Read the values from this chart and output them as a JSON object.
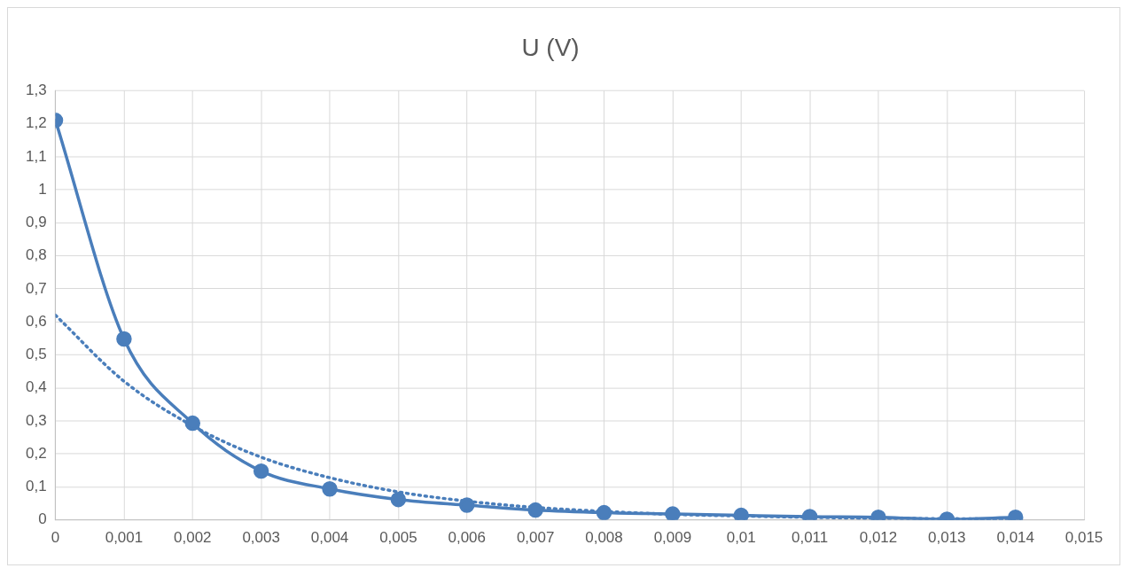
{
  "chart_data": {
    "type": "line",
    "title": "U (V)",
    "grid": true,
    "legend": false,
    "xlim": [
      0,
      0.015
    ],
    "xticks": [
      0,
      {
        "value": 0.001,
        "label": "0,001"
      },
      {
        "value": 0.002,
        "label": "0,002"
      },
      {
        "value": 0.003,
        "label": "0,003"
      },
      {
        "value": 0.004,
        "label": "0,004"
      },
      {
        "value": 0.005,
        "label": "0,005"
      },
      {
        "value": 0.006,
        "label": "0,006"
      },
      {
        "value": 0.007,
        "label": "0,007"
      },
      {
        "value": 0.008,
        "label": "0,008"
      },
      {
        "value": 0.009,
        "label": "0,009"
      },
      {
        "value": 0.01,
        "label": "0,01"
      },
      {
        "value": 0.011,
        "label": "0,011"
      },
      {
        "value": 0.012,
        "label": "0,012"
      },
      {
        "value": 0.013,
        "label": "0,013"
      },
      {
        "value": 0.014,
        "label": "0,014"
      },
      {
        "value": 0.015,
        "label": "0,015"
      }
    ],
    "ylim": [
      0,
      1.3
    ],
    "yticks": [
      0,
      {
        "value": 0.1,
        "label": "0,1"
      },
      {
        "value": 0.2,
        "label": "0,2"
      },
      {
        "value": 0.3,
        "label": "0,3"
      },
      {
        "value": 0.4,
        "label": "0,4"
      },
      {
        "value": 0.5,
        "label": "0,5"
      },
      {
        "value": 0.6,
        "label": "0,6"
      },
      {
        "value": 0.7,
        "label": "0,7"
      },
      {
        "value": 0.8,
        "label": "0,8"
      },
      {
        "value": 0.9,
        "label": "0,9"
      },
      1,
      {
        "value": 1.1,
        "label": "1,1"
      },
      {
        "value": 1.2,
        "label": "1,2"
      },
      {
        "value": 1.3,
        "label": "1,3"
      }
    ],
    "series": [
      {
        "color": "#4a7ebb",
        "marker": "circle",
        "line_style": "solid",
        "x": [
          0,
          0.001,
          0.002,
          0.003,
          0.004,
          0.005,
          0.006,
          0.007,
          0.008,
          0.009,
          0.01,
          0.011,
          0.012,
          0.013,
          0.014
        ],
        "values": [
          1.21,
          0.548,
          0.293,
          0.148,
          0.094,
          0.062,
          0.045,
          0.03,
          0.022,
          0.018,
          0.014,
          0.01,
          0.008,
          0.002,
          0.008
        ]
      },
      {
        "color": "#4a7ebb",
        "marker": "none",
        "line_style": "dotted",
        "x": [
          0,
          0.001,
          0.002,
          0.003,
          0.004,
          0.005,
          0.006,
          0.007,
          0.008,
          0.009,
          0.01,
          0.011,
          0.012,
          0.013,
          0.014
        ],
        "values": [
          0.62,
          0.42,
          0.285,
          0.19,
          0.128,
          0.085,
          0.057,
          0.038,
          0.026,
          0.017,
          0.012,
          0.008,
          0.005,
          0.004,
          0.002
        ]
      }
    ]
  }
}
